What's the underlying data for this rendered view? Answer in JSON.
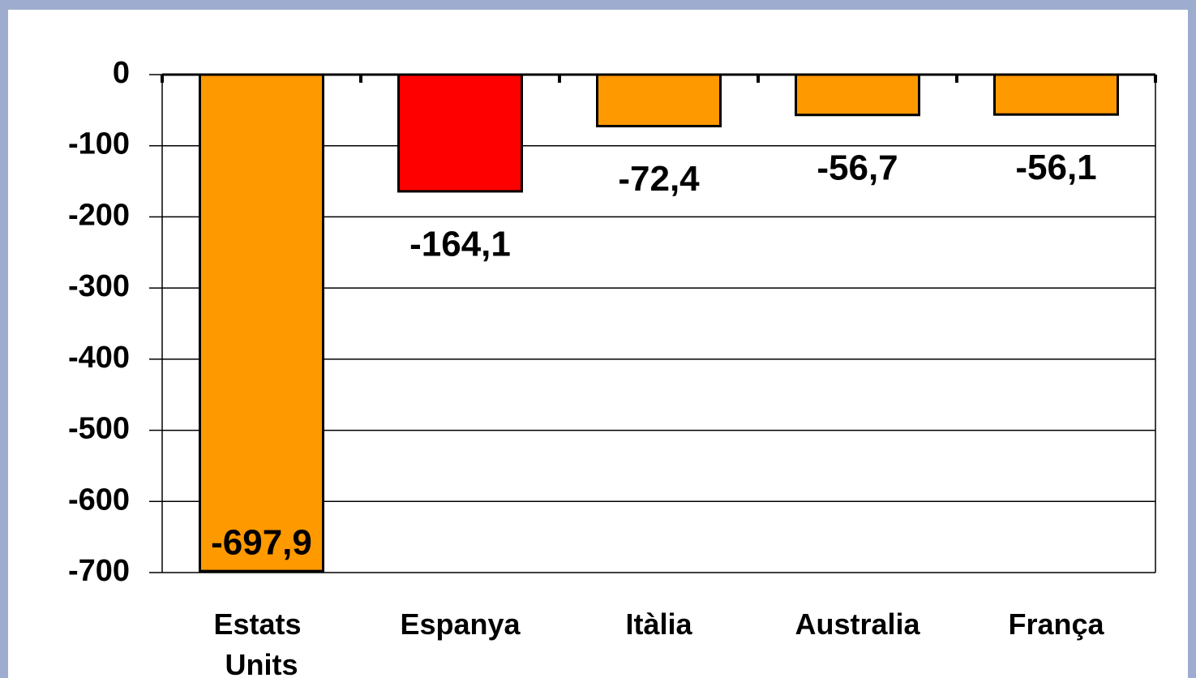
{
  "chart_data": {
    "type": "bar",
    "categories": [
      "Estats Units",
      "Espanya",
      "Itàlia",
      "Australia",
      "França"
    ],
    "values": [
      -697.9,
      -164.1,
      -72.4,
      -56.7,
      -56.1
    ],
    "value_labels": [
      "-697,9",
      "-164,1",
      "-72,4",
      "-56,7",
      "-56,1"
    ],
    "colors": [
      "#ff9900",
      "#ff0000",
      "#ff9900",
      "#ff9900",
      "#ff9900"
    ],
    "ylim": [
      -700,
      0
    ],
    "yticks": [
      0,
      -100,
      -200,
      -300,
      -400,
      -500,
      -600,
      -700
    ],
    "grid": true
  }
}
